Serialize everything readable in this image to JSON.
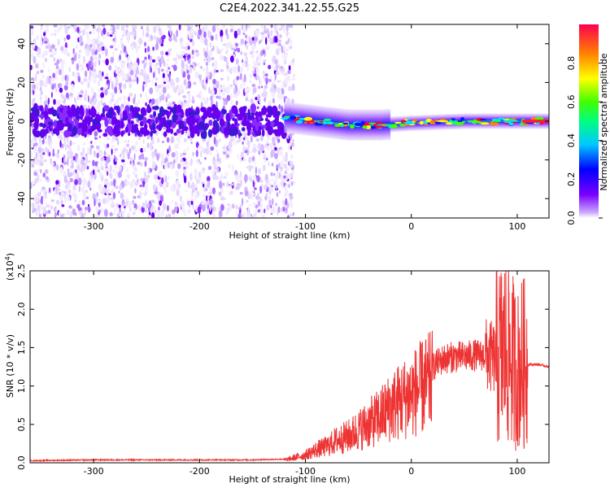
{
  "chart_data": [
    {
      "type": "heatmap",
      "title": "C2E4.2022.341.22.55.G25",
      "xlabel": "Height of straight line (km)",
      "ylabel": "Frequency (Hz)",
      "xlim": [
        -360,
        130
      ],
      "ylim": [
        -50,
        50
      ],
      "xticks": [
        -300,
        -200,
        -100,
        0,
        100
      ],
      "yticks": [
        -40,
        -20,
        0,
        20,
        40
      ],
      "colorbar": {
        "label": "Normalized spectral amplitude",
        "range": [
          0,
          1
        ],
        "ticks": [
          0.0,
          0.2,
          0.4,
          0.6,
          0.8
        ],
        "tick_labels": [
          "0.0",
          "0.2",
          "0.4",
          "0.6",
          "0.8"
        ],
        "colormap": [
          "#ffffff",
          "#7a00ff",
          "#0000ff",
          "#00e5ff",
          "#00ff00",
          "#ffff00",
          "#ff8000",
          "#ff0040"
        ]
      },
      "features": {
        "noise_region_x": [
          -360,
          -120
        ],
        "signal_band_x": [
          -120,
          130
        ],
        "band_center_freq_at": [
          [
            -120,
            2
          ],
          [
            -90,
            0
          ],
          [
            -60,
            -2
          ],
          [
            -30,
            -2
          ],
          [
            0,
            -1
          ],
          [
            50,
            0
          ],
          [
            100,
            0
          ],
          [
            130,
            0
          ]
        ]
      }
    },
    {
      "type": "line",
      "title": "",
      "xlabel": "Height of straight line (km)",
      "ylabel": "SNR (10 * v/v)",
      "scale_label": "(x10",
      "scale_exponent": "4",
      "scale_close": ")",
      "xlim": [
        -360,
        130
      ],
      "ylim": [
        0,
        2.5
      ],
      "xticks": [
        -300,
        -200,
        -100,
        0,
        100
      ],
      "yticks": [
        0.0,
        0.5,
        1.0,
        1.5,
        2.0,
        2.5
      ],
      "ytick_labels": [
        "0.0",
        "0.5",
        "1.0",
        "1.5",
        "2.0",
        "2.5"
      ],
      "line_color": "#ee3333",
      "series": [
        {
          "name": "SNR",
          "x": [
            -360,
            -300,
            -250,
            -200,
            -150,
            -120,
            -110,
            -100,
            -90,
            -80,
            -70,
            -60,
            -50,
            -40,
            -30,
            -20,
            -10,
            0,
            10,
            20,
            30,
            40,
            50,
            60,
            70,
            80,
            90,
            100,
            105,
            110,
            120,
            130
          ],
          "y": [
            0.02,
            0.03,
            0.03,
            0.03,
            0.03,
            0.04,
            0.08,
            0.12,
            0.2,
            0.25,
            0.35,
            0.4,
            0.5,
            0.6,
            0.7,
            0.85,
            0.95,
            1.05,
            1.15,
            1.25,
            1.35,
            1.38,
            1.38,
            1.4,
            1.4,
            1.35,
            1.5,
            1.2,
            1.3,
            1.28,
            1.28,
            1.25
          ]
        }
      ]
    }
  ]
}
